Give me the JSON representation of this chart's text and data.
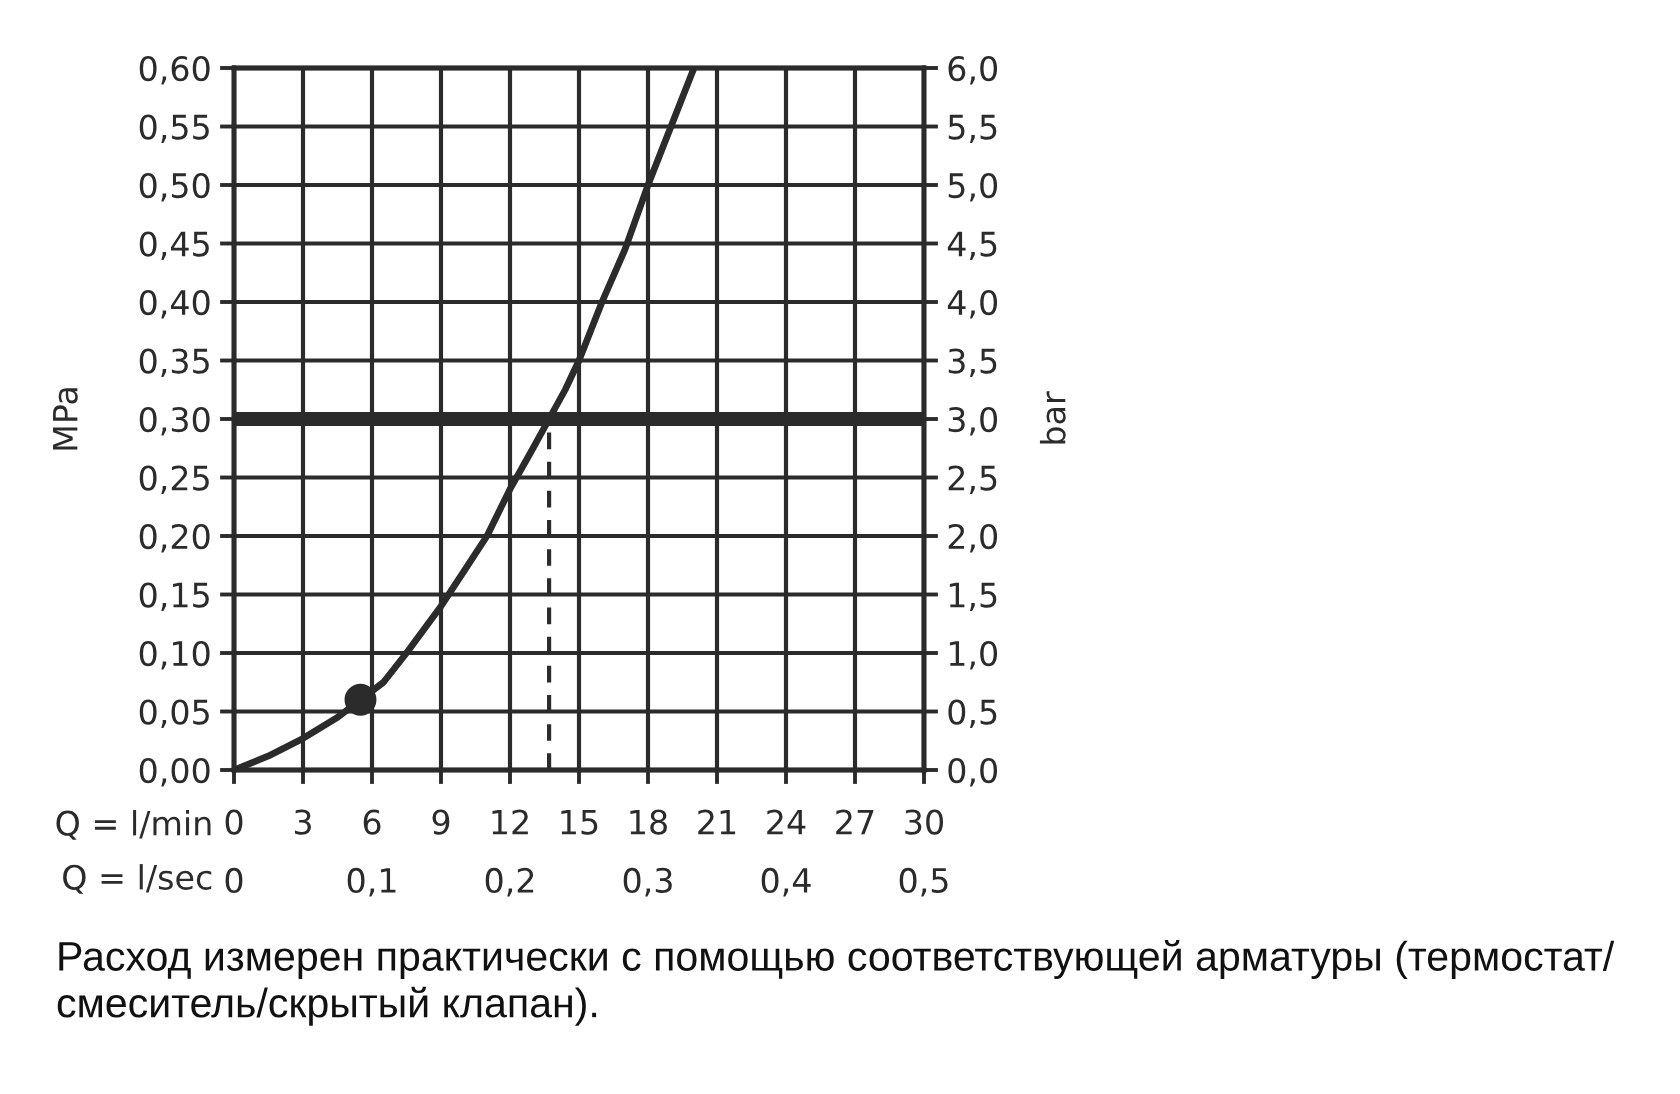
{
  "chart_data": {
    "type": "line",
    "xlabel": "Q = l/min",
    "x2label": "Q = l/sec",
    "ylabel": "MPa",
    "y2label": "bar",
    "xlim": [
      0,
      30
    ],
    "xticks": [
      0,
      3,
      6,
      9,
      12,
      15,
      18,
      21,
      24,
      27,
      30
    ],
    "x2lim": [
      0,
      0.5
    ],
    "x2ticks": [
      0,
      {
        "value": 0.1,
        "label": "0,1"
      },
      {
        "value": 0.2,
        "label": "0,2"
      },
      {
        "value": 0.3,
        "label": "0,3"
      },
      {
        "value": 0.4,
        "label": "0,4"
      },
      {
        "value": 0.5,
        "label": "0,5"
      }
    ],
    "ylim": [
      0,
      0.6
    ],
    "yticks": [
      {
        "value": 0,
        "label": "0,00"
      },
      {
        "value": 0.05,
        "label": "0,05"
      },
      {
        "value": 0.1,
        "label": "0,10"
      },
      {
        "value": 0.15,
        "label": "0,15"
      },
      {
        "value": 0.2,
        "label": "0,20"
      },
      {
        "value": 0.25,
        "label": "0,25"
      },
      {
        "value": 0.3,
        "label": "0,30"
      },
      {
        "value": 0.35,
        "label": "0,35"
      },
      {
        "value": 0.4,
        "label": "0,40"
      },
      {
        "value": 0.45,
        "label": "0,45"
      },
      {
        "value": 0.5,
        "label": "0,50"
      },
      {
        "value": 0.55,
        "label": "0,55"
      },
      {
        "value": 0.6,
        "label": "0,60"
      }
    ],
    "y2lim": [
      0,
      6
    ],
    "y2ticks": [
      {
        "value": 0,
        "label": "0,0"
      },
      {
        "value": 0.5,
        "label": "0,5"
      },
      {
        "value": 1,
        "label": "1,0"
      },
      {
        "value": 1.5,
        "label": "1,5"
      },
      {
        "value": 2,
        "label": "2,0"
      },
      {
        "value": 2.5,
        "label": "2,5"
      },
      {
        "value": 3,
        "label": "3,0"
      },
      {
        "value": 3.5,
        "label": "3,5"
      },
      {
        "value": 4,
        "label": "4,0"
      },
      {
        "value": 4.5,
        "label": "4,5"
      },
      {
        "value": 5,
        "label": "5,0"
      },
      {
        "value": 5.5,
        "label": "5,5"
      },
      {
        "value": 6,
        "label": "6,0"
      }
    ],
    "grid": true,
    "series": [
      {
        "color": "#2b2b2b",
        "marker": "none",
        "line_style": "solid",
        "x": [
          0,
          1.5,
          3,
          4.5,
          5.5,
          6.5,
          7.5,
          9,
          10,
          11,
          12,
          13,
          13.7,
          14.4,
          15,
          16,
          17,
          18,
          19,
          20
        ],
        "values": [
          0,
          0.012,
          0.027,
          0.045,
          0.06,
          0.075,
          0.1,
          0.14,
          0.17,
          0.2,
          0.24,
          0.275,
          0.3,
          0.325,
          0.35,
          0.4,
          0.445,
          0.5,
          0.55,
          0.6
        ]
      },
      {
        "type": "scatter",
        "color": "#2b2b2b",
        "marker": "circle",
        "x": [
          5.5
        ],
        "values": [
          0.06
        ]
      },
      {
        "type": "line",
        "color": "#2b2b2b",
        "marker": "none",
        "line_style": "dashed",
        "x": [
          13.7,
          13.7
        ],
        "values": [
          0,
          0.3
        ]
      }
    ],
    "ref_lines": [
      {
        "axis": "y",
        "value": 0.3,
        "color": "#2b2b2b"
      }
    ],
    "annotations": [
      "Расход измерен практически с помощью соответствующей арматуры (термостат/\nсмеситель/скрытый клапан)."
    ]
  }
}
